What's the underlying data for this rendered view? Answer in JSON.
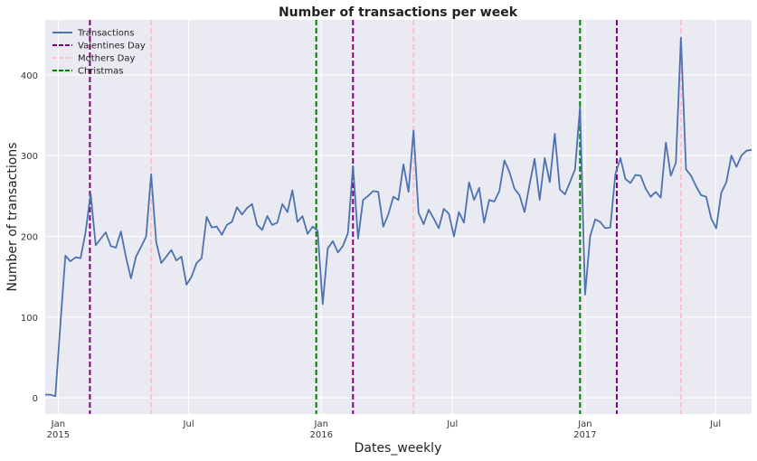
{
  "chart_data": {
    "type": "line",
    "title": "Number of transactions per week",
    "xlabel": "Dates_weekly",
    "ylabel": "Number of transactions",
    "ylim": [
      -20,
      468
    ],
    "yticks": [
      0,
      100,
      200,
      300,
      400
    ],
    "xlim": [
      "2014-12-14",
      "2017-08-20"
    ],
    "xticks": [
      {
        "date": "2015-01-01",
        "label": "Jan",
        "sublabel": "2015"
      },
      {
        "date": "2015-07-01",
        "label": "Jul",
        "sublabel": ""
      },
      {
        "date": "2016-01-01",
        "label": "Jan",
        "sublabel": "2016"
      },
      {
        "date": "2016-07-01",
        "label": "Jul",
        "sublabel": ""
      },
      {
        "date": "2017-01-01",
        "label": "Jan",
        "sublabel": "2017"
      },
      {
        "date": "2017-07-01",
        "label": "Jul",
        "sublabel": ""
      }
    ],
    "grid": true,
    "legend_position": "top-left",
    "series": [
      {
        "name": "Transactions",
        "color": "#4c72b0",
        "x": [
          "2014-12-14",
          "2014-12-21",
          "2014-12-28",
          "2015-01-04",
          "2015-01-11",
          "2015-01-18",
          "2015-01-25",
          "2015-02-01",
          "2015-02-08",
          "2015-02-15",
          "2015-02-22",
          "2015-03-01",
          "2015-03-08",
          "2015-03-15",
          "2015-03-22",
          "2015-03-29",
          "2015-04-05",
          "2015-04-12",
          "2015-04-19",
          "2015-04-26",
          "2015-05-03",
          "2015-05-10",
          "2015-05-17",
          "2015-05-24",
          "2015-05-31",
          "2015-06-07",
          "2015-06-14",
          "2015-06-21",
          "2015-06-28",
          "2015-07-05",
          "2015-07-12",
          "2015-07-19",
          "2015-07-26",
          "2015-08-02",
          "2015-08-09",
          "2015-08-16",
          "2015-08-23",
          "2015-08-30",
          "2015-09-06",
          "2015-09-13",
          "2015-09-20",
          "2015-09-27",
          "2015-10-04",
          "2015-10-11",
          "2015-10-18",
          "2015-10-25",
          "2015-11-01",
          "2015-11-08",
          "2015-11-15",
          "2015-11-22",
          "2015-11-29",
          "2015-12-06",
          "2015-12-13",
          "2015-12-20",
          "2015-12-27",
          "2016-01-03",
          "2016-01-10",
          "2016-01-17",
          "2016-01-24",
          "2016-01-31",
          "2016-02-07",
          "2016-02-14",
          "2016-02-21",
          "2016-02-28",
          "2016-03-06",
          "2016-03-13",
          "2016-03-20",
          "2016-03-27",
          "2016-04-03",
          "2016-04-10",
          "2016-04-17",
          "2016-04-24",
          "2016-05-01",
          "2016-05-08",
          "2016-05-15",
          "2016-05-22",
          "2016-05-29",
          "2016-06-05",
          "2016-06-12",
          "2016-06-19",
          "2016-06-26",
          "2016-07-03",
          "2016-07-10",
          "2016-07-17",
          "2016-07-24",
          "2016-07-31",
          "2016-08-07",
          "2016-08-14",
          "2016-08-21",
          "2016-08-28",
          "2016-09-04",
          "2016-09-11",
          "2016-09-18",
          "2016-09-25",
          "2016-10-02",
          "2016-10-09",
          "2016-10-16",
          "2016-10-23",
          "2016-10-30",
          "2016-11-06",
          "2016-11-13",
          "2016-11-20",
          "2016-11-27",
          "2016-12-04",
          "2016-12-11",
          "2016-12-18",
          "2016-12-25",
          "2017-01-01",
          "2017-01-08",
          "2017-01-15",
          "2017-01-22",
          "2017-01-29",
          "2017-02-05",
          "2017-02-12",
          "2017-02-19",
          "2017-02-26",
          "2017-03-05",
          "2017-03-12",
          "2017-03-19",
          "2017-03-26",
          "2017-04-02",
          "2017-04-09",
          "2017-04-16",
          "2017-04-23",
          "2017-04-30",
          "2017-05-07",
          "2017-05-14",
          "2017-05-21",
          "2017-05-28",
          "2017-06-04",
          "2017-06-11",
          "2017-06-18",
          "2017-06-25",
          "2017-07-02",
          "2017-07-09",
          "2017-07-16",
          "2017-07-23",
          "2017-07-30",
          "2017-08-06",
          "2017-08-13",
          "2017-08-20"
        ],
        "values": [
          4,
          4,
          2,
          90,
          176,
          169,
          174,
          173,
          205,
          253,
          189,
          197,
          205,
          188,
          186,
          206,
          174,
          148,
          175,
          187,
          200,
          277,
          193,
          167,
          175,
          183,
          170,
          175,
          140,
          150,
          167,
          173,
          224,
          211,
          212,
          202,
          214,
          218,
          236,
          227,
          235,
          240,
          214,
          208,
          225,
          214,
          217,
          240,
          230,
          257,
          218,
          225,
          203,
          212,
          207,
          116,
          185,
          194,
          180,
          188,
          204,
          287,
          197,
          245,
          250,
          256,
          255,
          212,
          227,
          249,
          245,
          289,
          255,
          331,
          229,
          215,
          233,
          222,
          210,
          234,
          228,
          200,
          230,
          217,
          267,
          245,
          260,
          217,
          245,
          243,
          256,
          294,
          280,
          259,
          251,
          230,
          264,
          296,
          245,
          297,
          267,
          327,
          258,
          252,
          267,
          283,
          360,
          128,
          200,
          221,
          218,
          210,
          211,
          277,
          297,
          271,
          266,
          276,
          275,
          259,
          249,
          255,
          248,
          316,
          275,
          291,
          446,
          283,
          275,
          262,
          251,
          249,
          222,
          210,
          254,
          267,
          300,
          286,
          300,
          306,
          307
        ]
      }
    ],
    "events": [
      {
        "name": "Valentines Day",
        "color": "#800080",
        "style": "dashed",
        "dates": [
          "2015-02-14",
          "2016-02-14",
          "2017-02-14"
        ]
      },
      {
        "name": "Mothers Day",
        "color": "#ffc0cb",
        "style": "dashed",
        "dates": [
          "2015-05-10",
          "2016-05-08",
          "2017-05-14"
        ]
      },
      {
        "name": "Christmas",
        "color": "#008000",
        "style": "dashed",
        "dates": [
          "2015-12-25",
          "2016-12-25"
        ]
      }
    ]
  }
}
